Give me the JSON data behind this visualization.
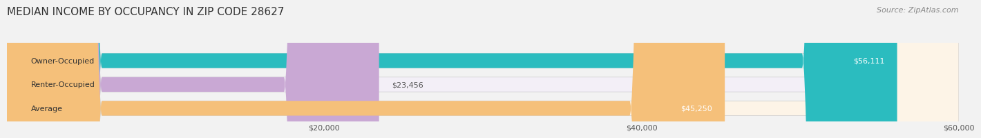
{
  "title": "MEDIAN INCOME BY OCCUPANCY IN ZIP CODE 28627",
  "source": "Source: ZipAtlas.com",
  "categories": [
    "Owner-Occupied",
    "Renter-Occupied",
    "Average"
  ],
  "values": [
    56111,
    23456,
    45250
  ],
  "labels": [
    "$56,111",
    "$23,456",
    "$45,250"
  ],
  "bar_colors": [
    "#2bbcbf",
    "#c9a8d4",
    "#f5c07a"
  ],
  "bar_bg_colors": [
    "#e8f7f7",
    "#f3eff7",
    "#fdf4e7"
  ],
  "xlim": [
    0,
    60000
  ],
  "xticks": [
    20000,
    40000,
    60000
  ],
  "xticklabels": [
    "$20,000",
    "$40,000",
    "$60,000"
  ],
  "title_fontsize": 11,
  "source_fontsize": 8,
  "label_fontsize": 8,
  "bar_label_fontsize": 8,
  "cat_fontsize": 8,
  "figsize": [
    14.06,
    1.96
  ],
  "dpi": 100,
  "bg_color": "#f2f2f2"
}
